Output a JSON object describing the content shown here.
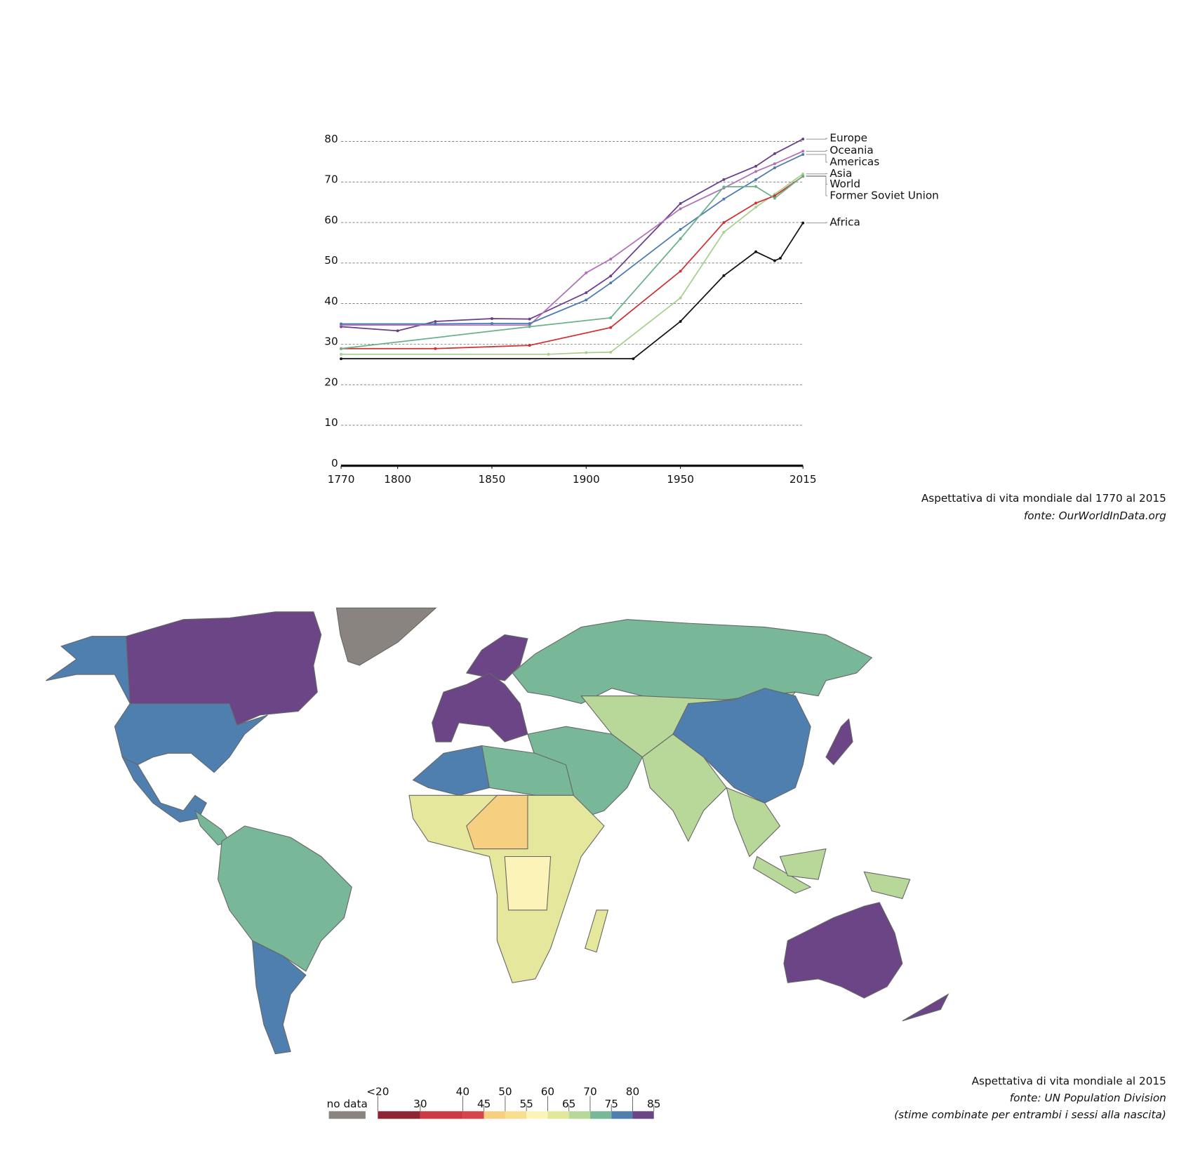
{
  "chart_data": {
    "type": "line",
    "caption": "Aspettativa di vita mondiale dal 1770 al 2015",
    "source": "fonte: OurWorldInData.org",
    "xlim": [
      1770,
      2015
    ],
    "xticks": [
      1770,
      1800,
      1850,
      1900,
      1950,
      2015
    ],
    "ylim": [
      0,
      80
    ],
    "yticks": [
      0,
      10,
      20,
      30,
      40,
      50,
      60,
      70,
      80
    ],
    "grid": true,
    "series": [
      {
        "name": "Europe",
        "color": "#6a3d8a",
        "x": [
          1770,
          1800,
          1820,
          1850,
          1870,
          1900,
          1913,
          1950,
          1973,
          1990,
          2000,
          2015
        ],
        "values": [
          34.3,
          33.3,
          35.6,
          36.3,
          36.2,
          42.7,
          46.8,
          64.7,
          70.6,
          73.9,
          77.0,
          80.6
        ]
      },
      {
        "name": "Oceania",
        "color": "#b070b8",
        "x": [
          1770,
          1870,
          1900,
          1913,
          1950,
          1973,
          1990,
          2000,
          2015
        ],
        "values": [
          34.7,
          34.7,
          47.6,
          51.0,
          63.4,
          68.5,
          72.6,
          74.5,
          77.6
        ]
      },
      {
        "name": "Americas",
        "color": "#4a7bb0",
        "x": [
          1770,
          1820,
          1850,
          1870,
          1900,
          1913,
          1950,
          1973,
          1990,
          2000,
          2015
        ],
        "values": [
          35.0,
          35.0,
          35.1,
          35.1,
          40.9,
          45.1,
          58.3,
          65.8,
          70.6,
          73.5,
          76.8
        ]
      },
      {
        "name": "Asia",
        "color": "#a8d08d",
        "x": [
          1770,
          1880,
          1900,
          1913,
          1950,
          1973,
          1990,
          2000,
          2015
        ],
        "values": [
          27.5,
          27.5,
          27.9,
          28.0,
          41.4,
          57.6,
          63.8,
          67.0,
          72.0
        ]
      },
      {
        "name": "World",
        "color": "#d03030",
        "x": [
          1770,
          1820,
          1870,
          1913,
          1950,
          1973,
          1990,
          2000,
          2015
        ],
        "values": [
          28.9,
          28.9,
          29.7,
          34.1,
          48.0,
          60.0,
          64.8,
          66.6,
          71.4
        ]
      },
      {
        "name": "Former Soviet Union",
        "color": "#6ab08a",
        "x": [
          1770,
          1870,
          1913,
          1950,
          1973,
          1990,
          2000,
          2015
        ],
        "values": [
          28.9,
          34.3,
          36.5,
          56.0,
          68.8,
          68.9,
          66.0,
          71.5
        ]
      },
      {
        "name": "Africa",
        "color": "#111111",
        "x": [
          1770,
          1925,
          1950,
          1973,
          1990,
          2000,
          2003,
          2015
        ],
        "values": [
          26.4,
          26.4,
          35.6,
          46.9,
          52.8,
          50.6,
          51.2,
          59.9
        ]
      }
    ]
  },
  "map": {
    "title": "Aspettativa di vita mondiale al 2015",
    "source": "fonte: UN Population Division",
    "note": "(stime combinate per entrambi i sessi alla nascita)",
    "legend": {
      "no_data_label": "no data",
      "no_data_color": "#8a8480",
      "breaks": [
        {
          "value": 20,
          "label": "<20"
        },
        30,
        40,
        45,
        50,
        55,
        60,
        65,
        70,
        75,
        80,
        85
      ],
      "colors": [
        "#8e2535",
        "#cc3b43",
        "#d6454b",
        "#f6cf80",
        "#f8de8f",
        "#fbf3b8",
        "#e3e79a",
        "#b8d89a",
        "#78b898",
        "#4f7fae",
        "#6b4585"
      ]
    }
  }
}
